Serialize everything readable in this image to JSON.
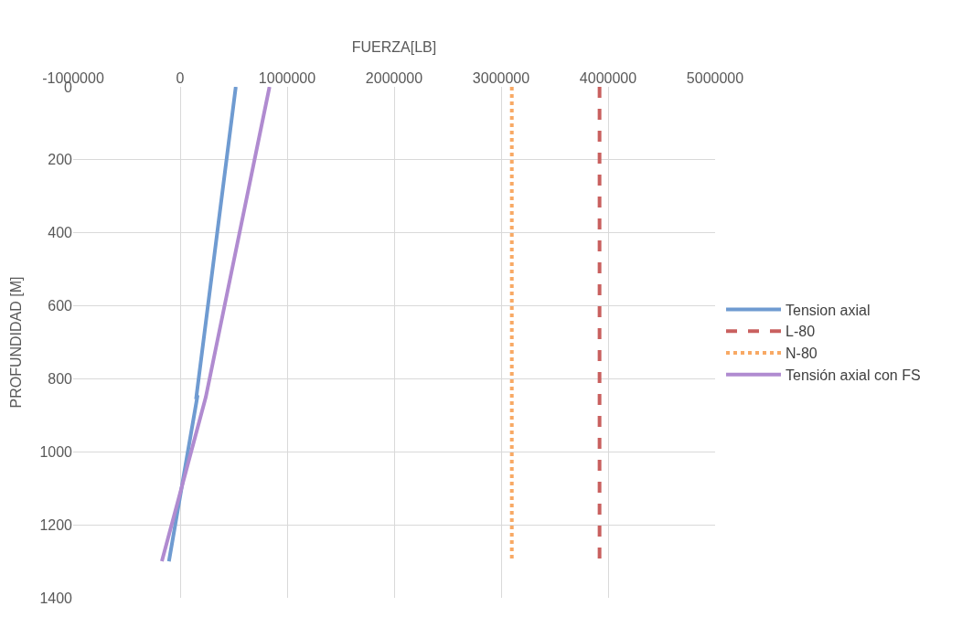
{
  "chart_data": {
    "type": "line",
    "xlabel": "FUERZA[LB]",
    "ylabel": "PROFUNDIDAD [M]",
    "xlim": [
      -1000000,
      5000000
    ],
    "xticks": [
      -1000000,
      0,
      1000000,
      2000000,
      3000000,
      4000000,
      5000000
    ],
    "ylim": [
      1400,
      0
    ],
    "yticks": [
      0,
      200,
      400,
      600,
      800,
      1000,
      1200,
      1400
    ],
    "grid": true,
    "legend": "right",
    "marker": "none",
    "series": [
      {
        "name": "Tension axial",
        "color": "#6f9bd1",
        "line_style": "solid",
        "x": [
          520000,
          151000,
          160000,
          -105000
        ],
        "values": [
          0,
          850,
          850,
          1300
        ]
      },
      {
        "name": "L-80",
        "color": "#c9605f",
        "line_style": "dashed",
        "x": [
          3920000,
          3920000
        ],
        "values": [
          0,
          1300
        ]
      },
      {
        "name": "N-80",
        "color": "#f8a964",
        "line_style": "dotted",
        "x": [
          3100000,
          3100000
        ],
        "values": [
          0,
          1300
        ]
      },
      {
        "name": "Tensión axial con FS",
        "color": "#b08bd0",
        "line_style": "solid",
        "x": [
          835000,
          240000,
          240000,
          -171000
        ],
        "values": [
          0,
          850,
          850,
          1300
        ]
      }
    ]
  }
}
